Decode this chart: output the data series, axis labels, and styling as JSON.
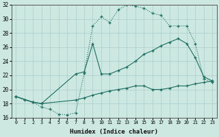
{
  "xlabel": "Humidex (Indice chaleur)",
  "bg_color": "#cce8e0",
  "grid_color": "#aacccc",
  "line_color": "#1a6b60",
  "xlim": [
    -0.5,
    23.5
  ],
  "ylim": [
    16,
    32
  ],
  "xticks": [
    0,
    1,
    2,
    3,
    4,
    5,
    6,
    7,
    8,
    9,
    10,
    11,
    12,
    13,
    14,
    15,
    16,
    17,
    18,
    19,
    20,
    21,
    22,
    23
  ],
  "yticks": [
    16,
    18,
    20,
    22,
    24,
    26,
    28,
    30,
    32
  ],
  "curve1_x": [
    0,
    1,
    2,
    3,
    4,
    5,
    6,
    7,
    8,
    9,
    10,
    11,
    12,
    13,
    14,
    15,
    16,
    17,
    18,
    19,
    20,
    21,
    22,
    23
  ],
  "curve1_y": [
    19.0,
    18.5,
    18.2,
    17.5,
    17.2,
    16.5,
    16.4,
    16.7,
    22.3,
    29.0,
    30.3,
    29.5,
    31.3,
    32.0,
    31.8,
    31.5,
    30.8,
    30.5,
    29.0,
    29.0,
    29.0,
    26.5,
    21.5,
    21.0
  ],
  "curve2_x": [
    0,
    2,
    3,
    7,
    8,
    9,
    10,
    11,
    12,
    13,
    14,
    15,
    16,
    17,
    18,
    19,
    20,
    21,
    22,
    23
  ],
  "curve2_y": [
    19.0,
    18.2,
    18.0,
    22.2,
    22.5,
    26.5,
    22.2,
    22.2,
    22.7,
    23.2,
    24.0,
    25.0,
    25.5,
    26.2,
    26.7,
    27.2,
    26.5,
    24.5,
    21.8,
    21.2
  ],
  "curve3_x": [
    0,
    2,
    3,
    7,
    8,
    9,
    10,
    11,
    12,
    13,
    14,
    15,
    16,
    17,
    18,
    19,
    20,
    21,
    22,
    23
  ],
  "curve3_y": [
    19.0,
    18.2,
    18.0,
    18.5,
    18.8,
    19.2,
    19.5,
    19.8,
    20.0,
    20.2,
    20.5,
    20.5,
    20.0,
    20.0,
    20.2,
    20.5,
    20.5,
    20.8,
    21.0,
    21.2
  ]
}
